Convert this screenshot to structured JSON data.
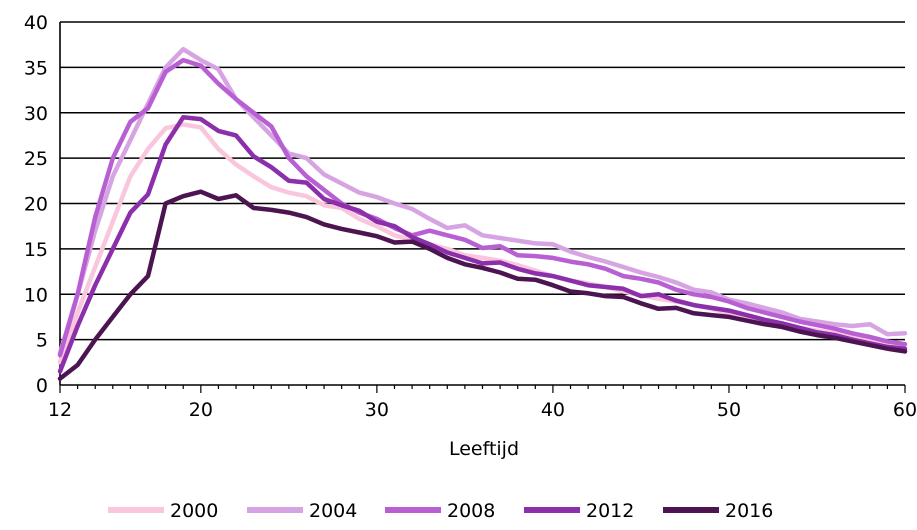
{
  "chart_data": {
    "type": "line",
    "title": "",
    "xlabel": "Leeftijd",
    "ylabel": "",
    "xlim": [
      12,
      60
    ],
    "ylim": [
      0,
      40
    ],
    "xticks": [
      12,
      20,
      30,
      40,
      50,
      60
    ],
    "yticks": [
      0,
      5,
      10,
      15,
      20,
      25,
      30,
      35,
      40
    ],
    "grid": "horizontal",
    "legend": "bottom",
    "colors": [
      "#f9c6dd",
      "#d7a4e3",
      "#b85fd3",
      "#8b2fab",
      "#4c1450"
    ],
    "x": [
      12,
      13,
      14,
      15,
      16,
      17,
      18,
      19,
      20,
      21,
      22,
      23,
      24,
      25,
      26,
      27,
      28,
      29,
      30,
      31,
      32,
      33,
      34,
      35,
      36,
      37,
      38,
      39,
      40,
      41,
      42,
      43,
      44,
      45,
      46,
      47,
      48,
      49,
      50,
      51,
      52,
      53,
      54,
      55,
      56,
      57,
      58,
      59,
      60
    ],
    "series": [
      {
        "name": "2000",
        "values": [
          2.5,
          8,
          13,
          18,
          23,
          26,
          28.3,
          28.7,
          28.4,
          26,
          24.3,
          23,
          21.8,
          21.2,
          20.8,
          19.8,
          19.5,
          18.3,
          17.5,
          16.5,
          16,
          15.5,
          15,
          14.3,
          14,
          13.7,
          13.2,
          12.6,
          12,
          11.5,
          11.2,
          10.8,
          10.3,
          9.9,
          9.5,
          9.2,
          8.8,
          8.4,
          7.9,
          7.5,
          7,
          6.6,
          6.3,
          6,
          5.7,
          5.3,
          4.8,
          4.4,
          4
        ]
      },
      {
        "name": "2004",
        "values": [
          3.5,
          10,
          17,
          23,
          27,
          31,
          35,
          37,
          35.8,
          34.8,
          31.5,
          29.5,
          27.5,
          25.5,
          25,
          23.2,
          22.2,
          21.2,
          20.7,
          20,
          19.4,
          18.3,
          17.3,
          17.6,
          16.5,
          16.2,
          15.9,
          15.6,
          15.5,
          14.7,
          14.1,
          13.6,
          13,
          12.4,
          11.9,
          11.3,
          10.5,
          10.2,
          9.4,
          9,
          8.5,
          8,
          7.3,
          7,
          6.7,
          6.5,
          6.7,
          5.6,
          5.7
        ]
      },
      {
        "name": "2008",
        "values": [
          3.3,
          10,
          18.5,
          25,
          29,
          30.5,
          34.5,
          35.8,
          35.2,
          33.2,
          31.5,
          30,
          28.5,
          25,
          23,
          21.5,
          20,
          19,
          18.3,
          17.3,
          16.5,
          17,
          16.5,
          16,
          15.1,
          15.3,
          14.3,
          14.2,
          14,
          13.6,
          13.3,
          12.8,
          12,
          11.7,
          11.3,
          10.5,
          10,
          9.7,
          9.2,
          8.5,
          8,
          7.5,
          7,
          6.6,
          6.2,
          5.7,
          5.3,
          4.8,
          4.5
        ]
      },
      {
        "name": "2012",
        "values": [
          1.5,
          6.5,
          11,
          15,
          19,
          21,
          26.5,
          29.5,
          29.3,
          28,
          27.5,
          25.2,
          24,
          22.5,
          22.3,
          20.5,
          19.8,
          19.2,
          18,
          17.5,
          16.3,
          15.5,
          14.6,
          14,
          13.4,
          13.5,
          12.8,
          12.3,
          12,
          11.5,
          11,
          10.8,
          10.6,
          9.8,
          10,
          9.3,
          8.8,
          8.5,
          8.2,
          7.7,
          7.2,
          6.8,
          6.3,
          5.8,
          5.5,
          5,
          4.6,
          4.2,
          4
        ]
      },
      {
        "name": "2016",
        "values": [
          0.7,
          2.2,
          5,
          7.5,
          10,
          12,
          20,
          20.8,
          21.3,
          20.5,
          20.9,
          19.5,
          19.3,
          19,
          18.5,
          17.7,
          17.2,
          16.8,
          16.4,
          15.7,
          15.8,
          15,
          14,
          13.3,
          12.9,
          12.4,
          11.7,
          11.6,
          11,
          10.3,
          10.1,
          9.8,
          9.7,
          9,
          8.4,
          8.5,
          7.9,
          7.7,
          7.5,
          7.1,
          6.7,
          6.4,
          5.9,
          5.5,
          5.2,
          4.8,
          4.4,
          4,
          3.7
        ]
      }
    ]
  }
}
